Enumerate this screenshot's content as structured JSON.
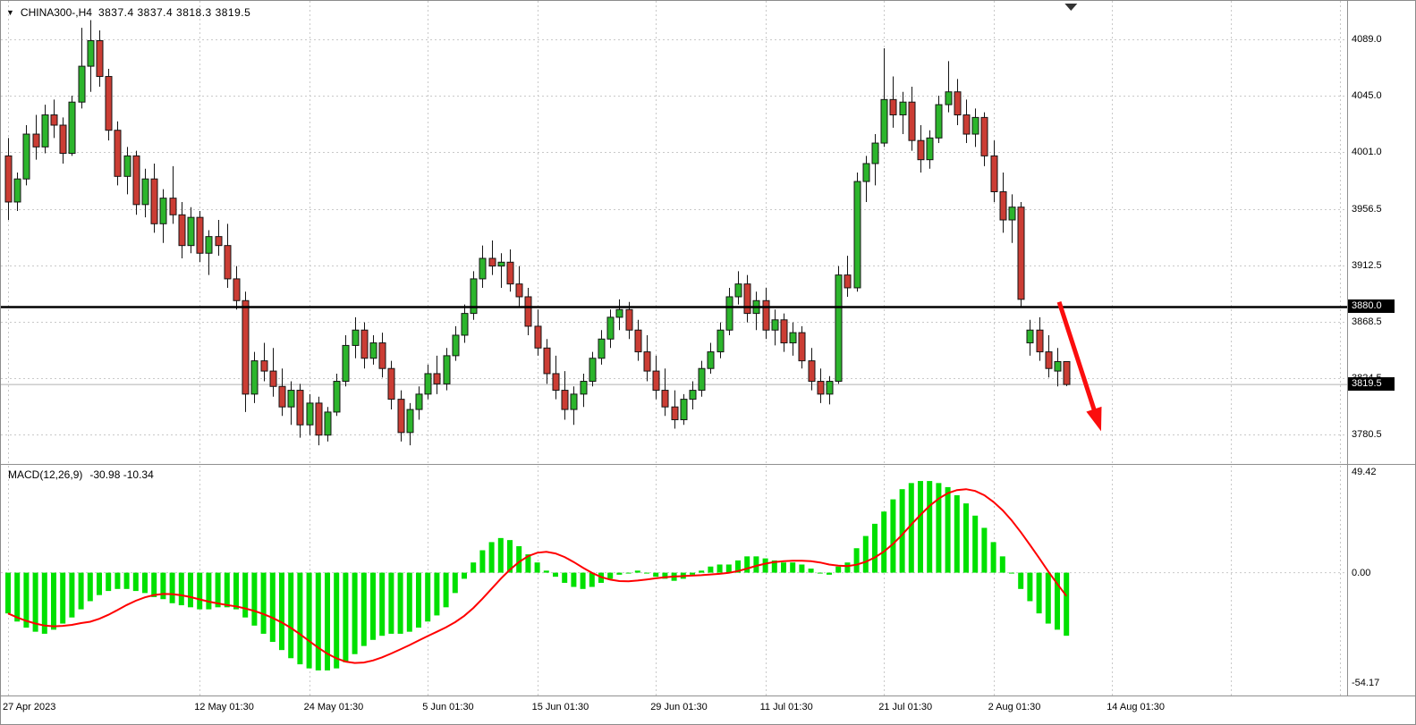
{
  "window": {
    "title": "CHINA300-,H4",
    "quote_line": "3837.4 3837.4 3818.3 3819.5"
  },
  "colors": {
    "background": "#ffffff",
    "grid": "#c9c9c9",
    "candle_up": "#2cb52c",
    "candle_down": "#cb3d34",
    "candle_outline": "#141414",
    "macd_histogram": "#00e000",
    "macd_signal": "#ff0000",
    "hline": "#000000",
    "current_price_line": "#b0b0b0",
    "arrow": "#fb0d0d",
    "badge_bg": "#000000",
    "badge_text": "#ffffff",
    "separator": "#909090",
    "shift_marker": "#333333"
  },
  "chart_data": {
    "type": "candlestick",
    "symbol": "CHINA300-",
    "timeframe": "H4",
    "current_bar": {
      "open": 3837.4,
      "high": 3837.4,
      "low": 3818.3,
      "close": 3819.5
    },
    "price_axis": {
      "top_price": 4089.0,
      "bottom_price": 3780.5,
      "tick_step": 44,
      "labels": [
        "4089.0",
        "4045.0",
        "4001.0",
        "3956.5",
        "3912.5",
        "3868.5",
        "3824.5",
        "3780.5"
      ]
    },
    "x_ticks": [
      {
        "index": 0,
        "label": "27 Apr 2023"
      },
      {
        "index": 21,
        "label": "12 May 01:30"
      },
      {
        "index": 33,
        "label": "24 May 01:30"
      },
      {
        "index": 46,
        "label": "5 Jun 01:30"
      },
      {
        "index": 58,
        "label": "15 Jun 01:30"
      },
      {
        "index": 71,
        "label": "29 Jun 01:30"
      },
      {
        "index": 83,
        "label": "11 Jul 01:30"
      },
      {
        "index": 96,
        "label": "21 Jul 01:30"
      },
      {
        "index": 108,
        "label": "2 Aug 01:30"
      },
      {
        "index": 121,
        "label": "14 Aug 01:30"
      }
    ],
    "extra_vgrid_indices": [
      134,
      146
    ],
    "horizontal_line": {
      "price": 3880.0,
      "label": "3880.0"
    },
    "current_price": {
      "value": 3819.5,
      "label": "3819.5"
    },
    "candles": [
      [
        3998,
        4012,
        3948,
        3962
      ],
      [
        3962,
        3985,
        3955,
        3980
      ],
      [
        3980,
        4022,
        3975,
        4015
      ],
      [
        4015,
        4030,
        3995,
        4005
      ],
      [
        4005,
        4038,
        4000,
        4030
      ],
      [
        4030,
        4042,
        4012,
        4022
      ],
      [
        4022,
        4028,
        3992,
        4000
      ],
      [
        4000,
        4045,
        3998,
        4040
      ],
      [
        4040,
        4098,
        4035,
        4068
      ],
      [
        4068,
        4104,
        4048,
        4088
      ],
      [
        4088,
        4096,
        4052,
        4060
      ],
      [
        4060,
        4066,
        4010,
        4018
      ],
      [
        4018,
        4025,
        3975,
        3982
      ],
      [
        3982,
        4005,
        3968,
        3998
      ],
      [
        3998,
        4002,
        3952,
        3960
      ],
      [
        3960,
        3988,
        3950,
        3980
      ],
      [
        3980,
        3992,
        3938,
        3945
      ],
      [
        3945,
        3972,
        3930,
        3965
      ],
      [
        3965,
        3990,
        3945,
        3952
      ],
      [
        3952,
        3962,
        3918,
        3928
      ],
      [
        3928,
        3958,
        3922,
        3950
      ],
      [
        3950,
        3955,
        3915,
        3922
      ],
      [
        3922,
        3940,
        3905,
        3935
      ],
      [
        3935,
        3948,
        3920,
        3928
      ],
      [
        3928,
        3945,
        3895,
        3902
      ],
      [
        3902,
        3912,
        3878,
        3885
      ],
      [
        3885,
        3892,
        3798,
        3812
      ],
      [
        3812,
        3845,
        3805,
        3838
      ],
      [
        3838,
        3852,
        3822,
        3830
      ],
      [
        3830,
        3848,
        3810,
        3818
      ],
      [
        3818,
        3832,
        3795,
        3802
      ],
      [
        3802,
        3822,
        3788,
        3815
      ],
      [
        3815,
        3820,
        3778,
        3788
      ],
      [
        3788,
        3812,
        3780,
        3805
      ],
      [
        3805,
        3810,
        3772,
        3780
      ],
      [
        3780,
        3802,
        3775,
        3798
      ],
      [
        3798,
        3828,
        3795,
        3822
      ],
      [
        3822,
        3858,
        3818,
        3850
      ],
      [
        3850,
        3872,
        3840,
        3862
      ],
      [
        3862,
        3868,
        3832,
        3840
      ],
      [
        3840,
        3858,
        3835,
        3852
      ],
      [
        3852,
        3860,
        3825,
        3832
      ],
      [
        3832,
        3838,
        3800,
        3808
      ],
      [
        3808,
        3815,
        3775,
        3782
      ],
      [
        3782,
        3805,
        3772,
        3800
      ],
      [
        3800,
        3818,
        3792,
        3812
      ],
      [
        3812,
        3835,
        3808,
        3828
      ],
      [
        3828,
        3842,
        3812,
        3820
      ],
      [
        3820,
        3848,
        3815,
        3842
      ],
      [
        3842,
        3865,
        3838,
        3858
      ],
      [
        3858,
        3882,
        3852,
        3875
      ],
      [
        3875,
        3908,
        3870,
        3902
      ],
      [
        3902,
        3928,
        3895,
        3918
      ],
      [
        3918,
        3932,
        3905,
        3912
      ],
      [
        3912,
        3922,
        3895,
        3915
      ],
      [
        3915,
        3925,
        3892,
        3898
      ],
      [
        3898,
        3912,
        3880,
        3888
      ],
      [
        3888,
        3895,
        3858,
        3865
      ],
      [
        3865,
        3878,
        3842,
        3848
      ],
      [
        3848,
        3855,
        3820,
        3828
      ],
      [
        3828,
        3842,
        3808,
        3815
      ],
      [
        3815,
        3830,
        3792,
        3800
      ],
      [
        3800,
        3818,
        3788,
        3812
      ],
      [
        3812,
        3828,
        3802,
        3822
      ],
      [
        3822,
        3845,
        3818,
        3840
      ],
      [
        3840,
        3862,
        3835,
        3855
      ],
      [
        3855,
        3878,
        3848,
        3872
      ],
      [
        3872,
        3886,
        3862,
        3878
      ],
      [
        3878,
        3884,
        3855,
        3862
      ],
      [
        3862,
        3870,
        3838,
        3845
      ],
      [
        3845,
        3858,
        3822,
        3830
      ],
      [
        3830,
        3842,
        3808,
        3815
      ],
      [
        3815,
        3832,
        3795,
        3802
      ],
      [
        3802,
        3815,
        3785,
        3792
      ],
      [
        3792,
        3812,
        3788,
        3808
      ],
      [
        3808,
        3822,
        3800,
        3815
      ],
      [
        3815,
        3838,
        3810,
        3832
      ],
      [
        3832,
        3852,
        3828,
        3845
      ],
      [
        3845,
        3868,
        3840,
        3862
      ],
      [
        3862,
        3895,
        3858,
        3888
      ],
      [
        3888,
        3908,
        3882,
        3898
      ],
      [
        3898,
        3905,
        3868,
        3875
      ],
      [
        3875,
        3892,
        3862,
        3885
      ],
      [
        3885,
        3895,
        3855,
        3862
      ],
      [
        3862,
        3878,
        3850,
        3870
      ],
      [
        3870,
        3875,
        3845,
        3852
      ],
      [
        3852,
        3868,
        3842,
        3860
      ],
      [
        3860,
        3865,
        3832,
        3838
      ],
      [
        3838,
        3848,
        3815,
        3822
      ],
      [
        3822,
        3832,
        3805,
        3812
      ],
      [
        3812,
        3826,
        3804,
        3822
      ],
      [
        3822,
        3912,
        3820,
        3905
      ],
      [
        3905,
        3920,
        3888,
        3895
      ],
      [
        3895,
        3985,
        3892,
        3978
      ],
      [
        3978,
        3998,
        3962,
        3992
      ],
      [
        3992,
        4015,
        3975,
        4008
      ],
      [
        4008,
        4082,
        4005,
        4042
      ],
      [
        4042,
        4060,
        4020,
        4030
      ],
      [
        4030,
        4048,
        4015,
        4040
      ],
      [
        4040,
        4052,
        4002,
        4010
      ],
      [
        4010,
        4022,
        3985,
        3995
      ],
      [
        3995,
        4018,
        3988,
        4012
      ],
      [
        4012,
        4045,
        4008,
        4038
      ],
      [
        4038,
        4072,
        4032,
        4048
      ],
      [
        4048,
        4058,
        4022,
        4030
      ],
      [
        4030,
        4042,
        4008,
        4015
      ],
      [
        4015,
        4035,
        4005,
        4028
      ],
      [
        4028,
        4032,
        3990,
        3998
      ],
      [
        3998,
        4010,
        3962,
        3970
      ],
      [
        3970,
        3985,
        3938,
        3948
      ],
      [
        3948,
        3968,
        3930,
        3958
      ],
      [
        3958,
        3962,
        3880,
        3886
      ],
      [
        3852,
        3870,
        3842,
        3862
      ],
      [
        3862,
        3872,
        3838,
        3845
      ],
      [
        3845,
        3858,
        3825,
        3832
      ],
      [
        3830,
        3848,
        3818,
        3837.4
      ],
      [
        3837.4,
        3837.4,
        3818.3,
        3819.5
      ]
    ],
    "macd": {
      "title": "MACD(12,26,9)",
      "values_text": "-30.98 -10.34",
      "main_value": -30.98,
      "signal_value": -10.34,
      "signal_period": 9,
      "axis": {
        "max": 49.42,
        "zero": 0.0,
        "min": -54.17,
        "labels": [
          "49.42",
          "0.00",
          "-54.17"
        ]
      },
      "histogram": [
        -20,
        -24,
        -27,
        -29,
        -30,
        -28,
        -25,
        -22,
        -18,
        -14,
        -11,
        -9,
        -8,
        -8,
        -9,
        -10,
        -12,
        -13,
        -15,
        -16,
        -17,
        -18,
        -18,
        -17,
        -17,
        -18,
        -22,
        -26,
        -30,
        -34,
        -38,
        -42,
        -45,
        -47,
        -48,
        -48,
        -47,
        -44,
        -40,
        -36,
        -33,
        -31,
        -30,
        -30,
        -29,
        -27,
        -24,
        -21,
        -17,
        -10,
        -3,
        5,
        11,
        15,
        17,
        16,
        13,
        9,
        5,
        1,
        -2,
        -5,
        -7,
        -8,
        -7,
        -5,
        -3,
        -1,
        0,
        1,
        0,
        -2,
        -3,
        -4,
        -3,
        -1,
        1,
        3,
        4,
        4,
        6,
        8,
        8,
        7,
        6,
        5,
        5,
        4,
        2,
        0,
        -1,
        3,
        5,
        12,
        18,
        24,
        30,
        36,
        41,
        44,
        45,
        45,
        44,
        42,
        38,
        34,
        28,
        22,
        15,
        8,
        0,
        -8,
        -14,
        -20,
        -25,
        -28,
        -30.98
      ]
    },
    "annotations": {
      "trend_arrow": {
        "from_index": 115.2,
        "from_price": 3884,
        "to_index": 119.8,
        "to_price": 3783
      },
      "shift_marker_index": 116.5
    }
  }
}
